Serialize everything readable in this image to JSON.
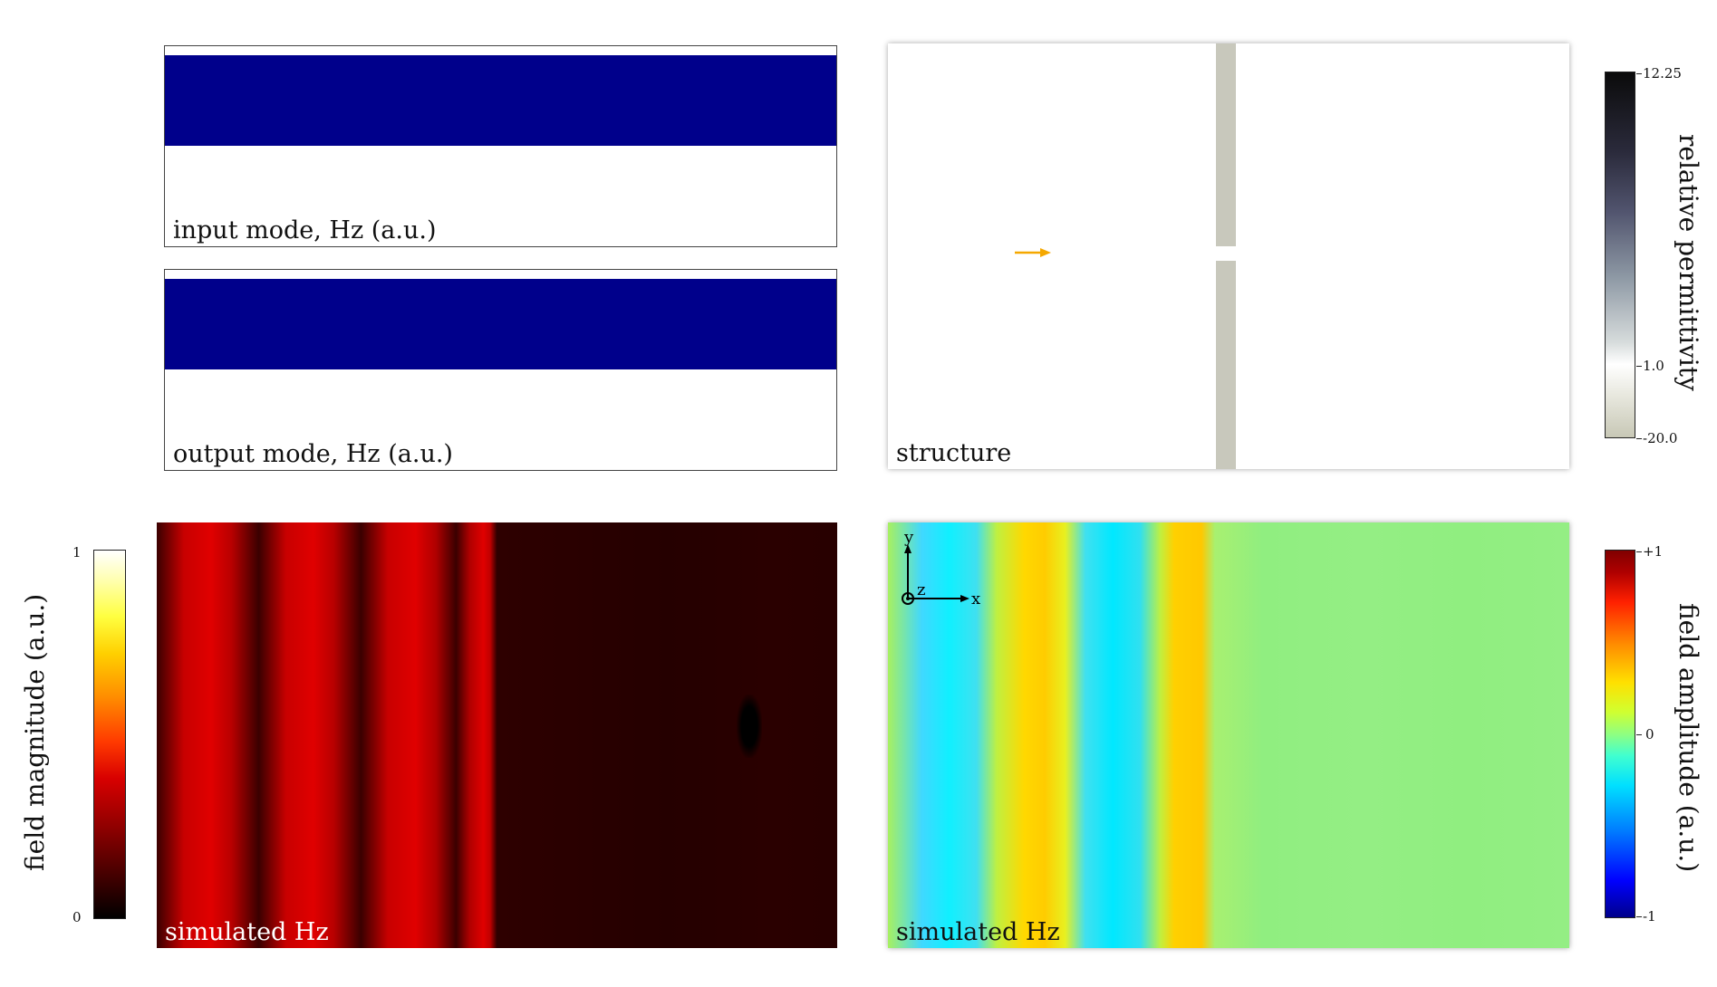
{
  "panels": {
    "input_mode": {
      "label": "input mode, Hz (a.u.)",
      "band_color": "#00008b"
    },
    "output_mode": {
      "label": "output mode, Hz (a.u.)",
      "band_color": "#00008b"
    },
    "structure": {
      "label": "structure",
      "wall_color": "#c8c8bc",
      "source_arrow_color": "#f5a800"
    },
    "field_magnitude": {
      "label": "simulated Hz"
    },
    "field_amplitude": {
      "label": "simulated Hz",
      "axes": {
        "x": "x",
        "y": "y",
        "z": "z"
      }
    }
  },
  "colorbars": {
    "permittivity": {
      "label": "relative permittivity",
      "ticks": [
        "12.25",
        "1.0",
        "-20.0"
      ]
    },
    "magnitude": {
      "label": "field magnitude (a.u.)",
      "ticks": [
        "1",
        "0"
      ]
    },
    "amplitude": {
      "label": "field amplitude (a.u.)",
      "ticks": [
        "+1",
        "0",
        "-1"
      ]
    }
  }
}
